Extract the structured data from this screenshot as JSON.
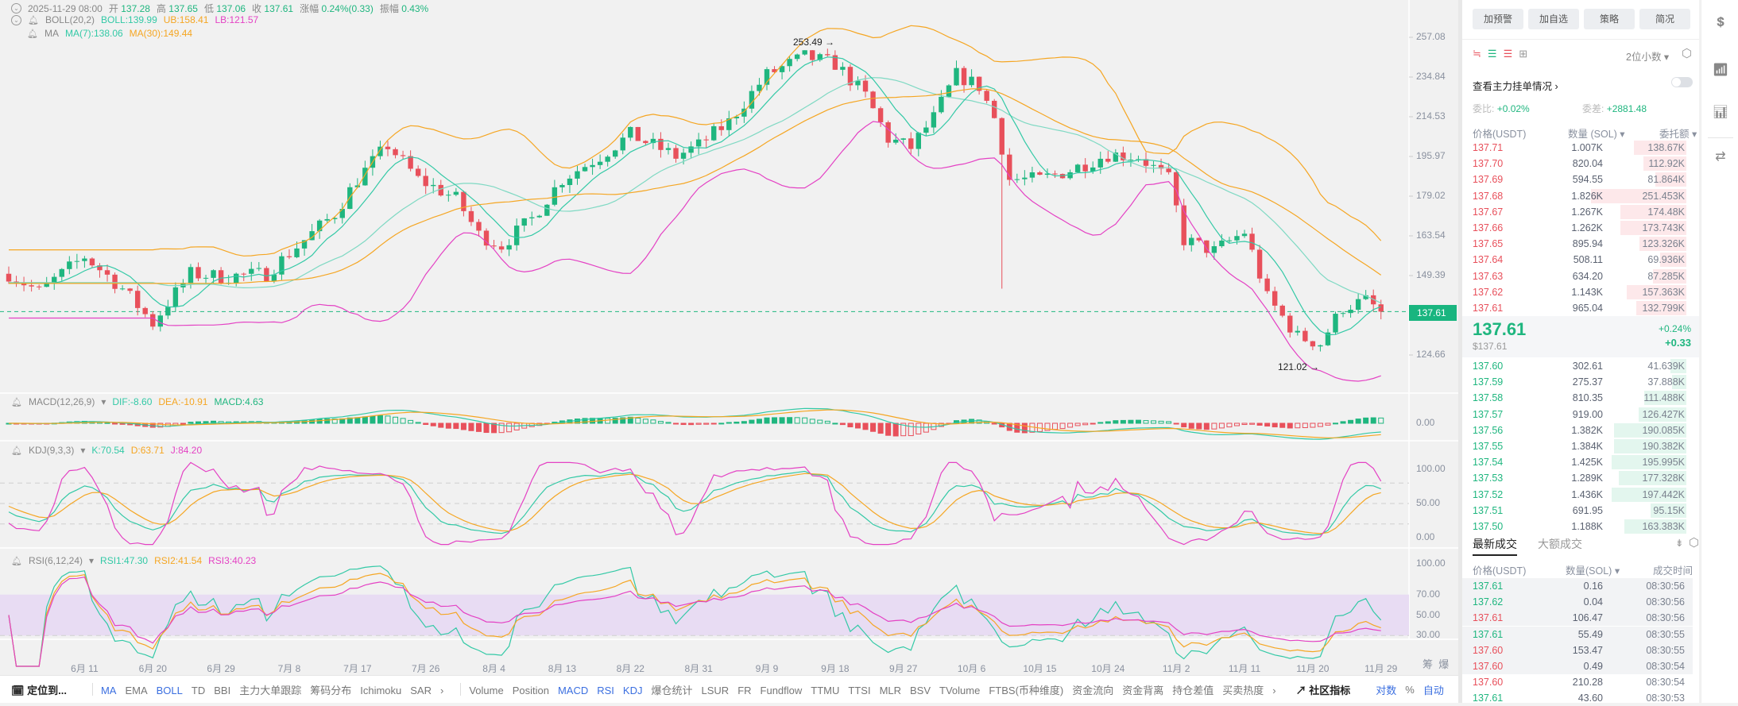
{
  "header": {
    "datetime": "2025-11-29 08:00",
    "open_label": "开",
    "open": "137.28",
    "high_label": "高",
    "high": "137.65",
    "low_label": "低",
    "low": "137.06",
    "close_label": "收",
    "close": "137.61",
    "change_label": "涨幅",
    "change": "0.24%(0.33)",
    "amp_label": "振幅",
    "amp": "0.43%"
  },
  "boll": {
    "name": "BOLL(20,2)",
    "mid": "BOLL:139.99",
    "ub": "UB:158.41",
    "lb": "LB:121.57"
  },
  "ma": {
    "name": "MA",
    "ma7": "MA(7):138.06",
    "ma30": "MA(30):149.44"
  },
  "macd": {
    "name": "MACD(12,26,9)",
    "dif": "DIF:-8.60",
    "dea": "DEA:-10.91",
    "macd": "MACD:4.63",
    "axis": [
      "0.00"
    ]
  },
  "kdj": {
    "name": "KDJ(9,3,3)",
    "k": "K:70.54",
    "d": "D:63.71",
    "j": "J:84.20",
    "axis": [
      "100.00",
      "50.00",
      "0.00"
    ]
  },
  "rsi": {
    "name": "RSI(6,12,24)",
    "r1": "RSI1:47.30",
    "r2": "RSI2:41.54",
    "r3": "RSI3:40.23",
    "axis": [
      "100.00",
      "70.00",
      "50.00",
      "30.00"
    ]
  },
  "price_axis": [
    "257.08",
    "234.84",
    "214.53",
    "195.97",
    "179.02",
    "163.54",
    "149.39",
    "124.66"
  ],
  "current_price_tag": "137.61",
  "annotations": {
    "high": "253.49",
    "low": "121.02"
  },
  "x_axis": [
    "6月 11",
    "6月 20",
    "6月 29",
    "7月 8",
    "7月 17",
    "7月 26",
    "8月 4",
    "8月 13",
    "8月 22",
    "8月 31",
    "9月 9",
    "9月 18",
    "9月 27",
    "10月 6",
    "10月 15",
    "10月 24",
    "11月 2",
    "11月 11",
    "11月 20",
    "11月 29"
  ],
  "axis_corner": [
    "筹",
    "爆"
  ],
  "colors": {
    "up": "#1fb67f",
    "down": "#e8505b",
    "ma7": "#33c9a6",
    "orange": "#f5a623",
    "lb": "#e442c4"
  },
  "chart_data": {
    "type": "candlestick",
    "start_date": "2025-06-01",
    "end_date": "2025-11-29",
    "price_keypoints": [
      [
        "2025-06-01",
        150
      ],
      [
        "2025-06-05",
        144
      ],
      [
        "2025-06-11",
        156
      ],
      [
        "2025-06-16",
        145
      ],
      [
        "2025-06-20",
        134
      ],
      [
        "2025-06-25",
        150
      ],
      [
        "2025-06-29",
        149
      ],
      [
        "2025-07-05",
        150
      ],
      [
        "2025-07-10",
        162
      ],
      [
        "2025-07-14",
        172
      ],
      [
        "2025-07-17",
        186
      ],
      [
        "2025-07-21",
        201
      ],
      [
        "2025-07-25",
        186
      ],
      [
        "2025-07-30",
        178
      ],
      [
        "2025-08-02",
        164
      ],
      [
        "2025-08-05",
        160
      ],
      [
        "2025-08-09",
        170
      ],
      [
        "2025-08-13",
        186
      ],
      [
        "2025-08-18",
        196
      ],
      [
        "2025-08-22",
        206
      ],
      [
        "2025-08-28",
        196
      ],
      [
        "2025-08-31",
        201
      ],
      [
        "2025-09-04",
        212
      ],
      [
        "2025-09-09",
        236
      ],
      [
        "2025-09-14",
        246
      ],
      [
        "2025-09-18",
        242
      ],
      [
        "2025-09-22",
        225
      ],
      [
        "2025-09-25",
        204
      ],
      [
        "2025-09-28",
        200
      ],
      [
        "2025-10-01",
        214
      ],
      [
        "2025-10-04",
        236
      ],
      [
        "2025-10-07",
        230
      ],
      [
        "2025-10-09",
        214
      ],
      [
        "2025-10-11",
        186
      ],
      [
        "2025-10-15",
        186
      ],
      [
        "2025-10-19",
        190
      ],
      [
        "2025-10-24",
        197
      ],
      [
        "2025-10-28",
        196
      ],
      [
        "2025-11-01",
        186
      ],
      [
        "2025-11-03",
        162
      ],
      [
        "2025-11-07",
        158
      ],
      [
        "2025-11-11",
        165
      ],
      [
        "2025-11-14",
        142
      ],
      [
        "2025-11-18",
        130
      ],
      [
        "2025-11-21",
        128
      ],
      [
        "2025-11-24",
        139
      ],
      [
        "2025-11-27",
        141
      ],
      [
        "2025-11-29",
        137.61
      ]
    ],
    "wick": {
      "date": "2025-10-10",
      "low": 145
    },
    "ylim": [
      124.66,
      257.08
    ],
    "scale": "log"
  },
  "panel": {
    "buttons": [
      "加预警",
      "加自选",
      "策略",
      "简况"
    ],
    "decimals": "2位小数",
    "main_orders": "查看主力挂单情况",
    "ratio_label": "委比:",
    "ratio": "+0.02%",
    "diff_label": "委差:",
    "diff": "+2881.48",
    "cols": [
      "价格(USDT)",
      "数量 (SOL)",
      "委托额"
    ],
    "asks": [
      [
        "137.71",
        "1.007K",
        "138.67K"
      ],
      [
        "137.70",
        "820.04",
        "112.92K"
      ],
      [
        "137.69",
        "594.55",
        "81.864K"
      ],
      [
        "137.68",
        "1.826K",
        "251.453K"
      ],
      [
        "137.67",
        "1.267K",
        "174.48K"
      ],
      [
        "137.66",
        "1.262K",
        "173.743K"
      ],
      [
        "137.65",
        "895.94",
        "123.326K"
      ],
      [
        "137.64",
        "508.11",
        "69.936K"
      ],
      [
        "137.63",
        "634.20",
        "87.285K"
      ],
      [
        "137.62",
        "1.143K",
        "157.363K"
      ],
      [
        "137.61",
        "965.04",
        "132.799K"
      ]
    ],
    "last_price": "137.61",
    "last_usd": "$137.61",
    "last_pct": "+0.24%",
    "last_chg": "+0.33",
    "bids": [
      [
        "137.60",
        "302.61",
        "41.639K"
      ],
      [
        "137.59",
        "275.37",
        "37.888K"
      ],
      [
        "137.58",
        "810.35",
        "111.488K"
      ],
      [
        "137.57",
        "919.00",
        "126.427K"
      ],
      [
        "137.56",
        "1.382K",
        "190.085K"
      ],
      [
        "137.55",
        "1.384K",
        "190.382K"
      ],
      [
        "137.54",
        "1.425K",
        "195.995K"
      ],
      [
        "137.53",
        "1.289K",
        "177.328K"
      ],
      [
        "137.52",
        "1.436K",
        "197.442K"
      ],
      [
        "137.51",
        "691.95",
        "95.15K"
      ],
      [
        "137.50",
        "1.188K",
        "163.383K"
      ]
    ],
    "trade_tabs": [
      "最新成交",
      "大额成交"
    ],
    "trade_cols": [
      "价格(USDT)",
      "数量(SOL)",
      "成交时间"
    ],
    "trades": [
      [
        "137.61",
        "0.16",
        "08:30:56",
        "up"
      ],
      [
        "137.62",
        "0.04",
        "08:30:56",
        "up"
      ],
      [
        "137.61",
        "106.47",
        "08:30:56",
        "down"
      ],
      [
        "137.61",
        "55.49",
        "08:30:55",
        "up"
      ],
      [
        "137.60",
        "153.47",
        "08:30:55",
        "down"
      ],
      [
        "137.60",
        "0.49",
        "08:30:54",
        "down"
      ],
      [
        "137.60",
        "210.28",
        "08:30:54",
        "down"
      ],
      [
        "137.61",
        "43.60",
        "08:30:53",
        "up"
      ]
    ]
  },
  "toolbar": {
    "locate": "定位到...",
    "main": [
      [
        "MA",
        1
      ],
      [
        "EMA",
        0
      ],
      [
        "BOLL",
        1
      ],
      [
        "TD",
        0
      ],
      [
        "BBI",
        0
      ],
      [
        "主力大单跟踪",
        0
      ],
      [
        "筹码分布",
        0
      ],
      [
        "Ichimoku",
        0
      ],
      [
        "SAR",
        0
      ],
      [
        "›",
        0
      ]
    ],
    "sub": [
      [
        "Volume",
        0
      ],
      [
        "Position",
        0
      ],
      [
        "MACD",
        1
      ],
      [
        "RSI",
        1
      ],
      [
        "KDJ",
        1
      ],
      [
        "爆仓统计",
        0
      ],
      [
        "LSUR",
        0
      ],
      [
        "FR",
        0
      ],
      [
        "Fundflow",
        0
      ],
      [
        "TTMU",
        0
      ],
      [
        "TTSI",
        0
      ],
      [
        "MLR",
        0
      ],
      [
        "BSV",
        0
      ],
      [
        "TVolume",
        0
      ],
      [
        "FTBS(币种维度)",
        0
      ],
      [
        "资金流向",
        0
      ],
      [
        "资金背离",
        0
      ],
      [
        "持仓差值",
        0
      ],
      [
        "买卖热度",
        0
      ],
      [
        "›",
        0
      ]
    ],
    "community": "社区指标",
    "log": "对数",
    "pct": "%",
    "auto": "自动"
  }
}
